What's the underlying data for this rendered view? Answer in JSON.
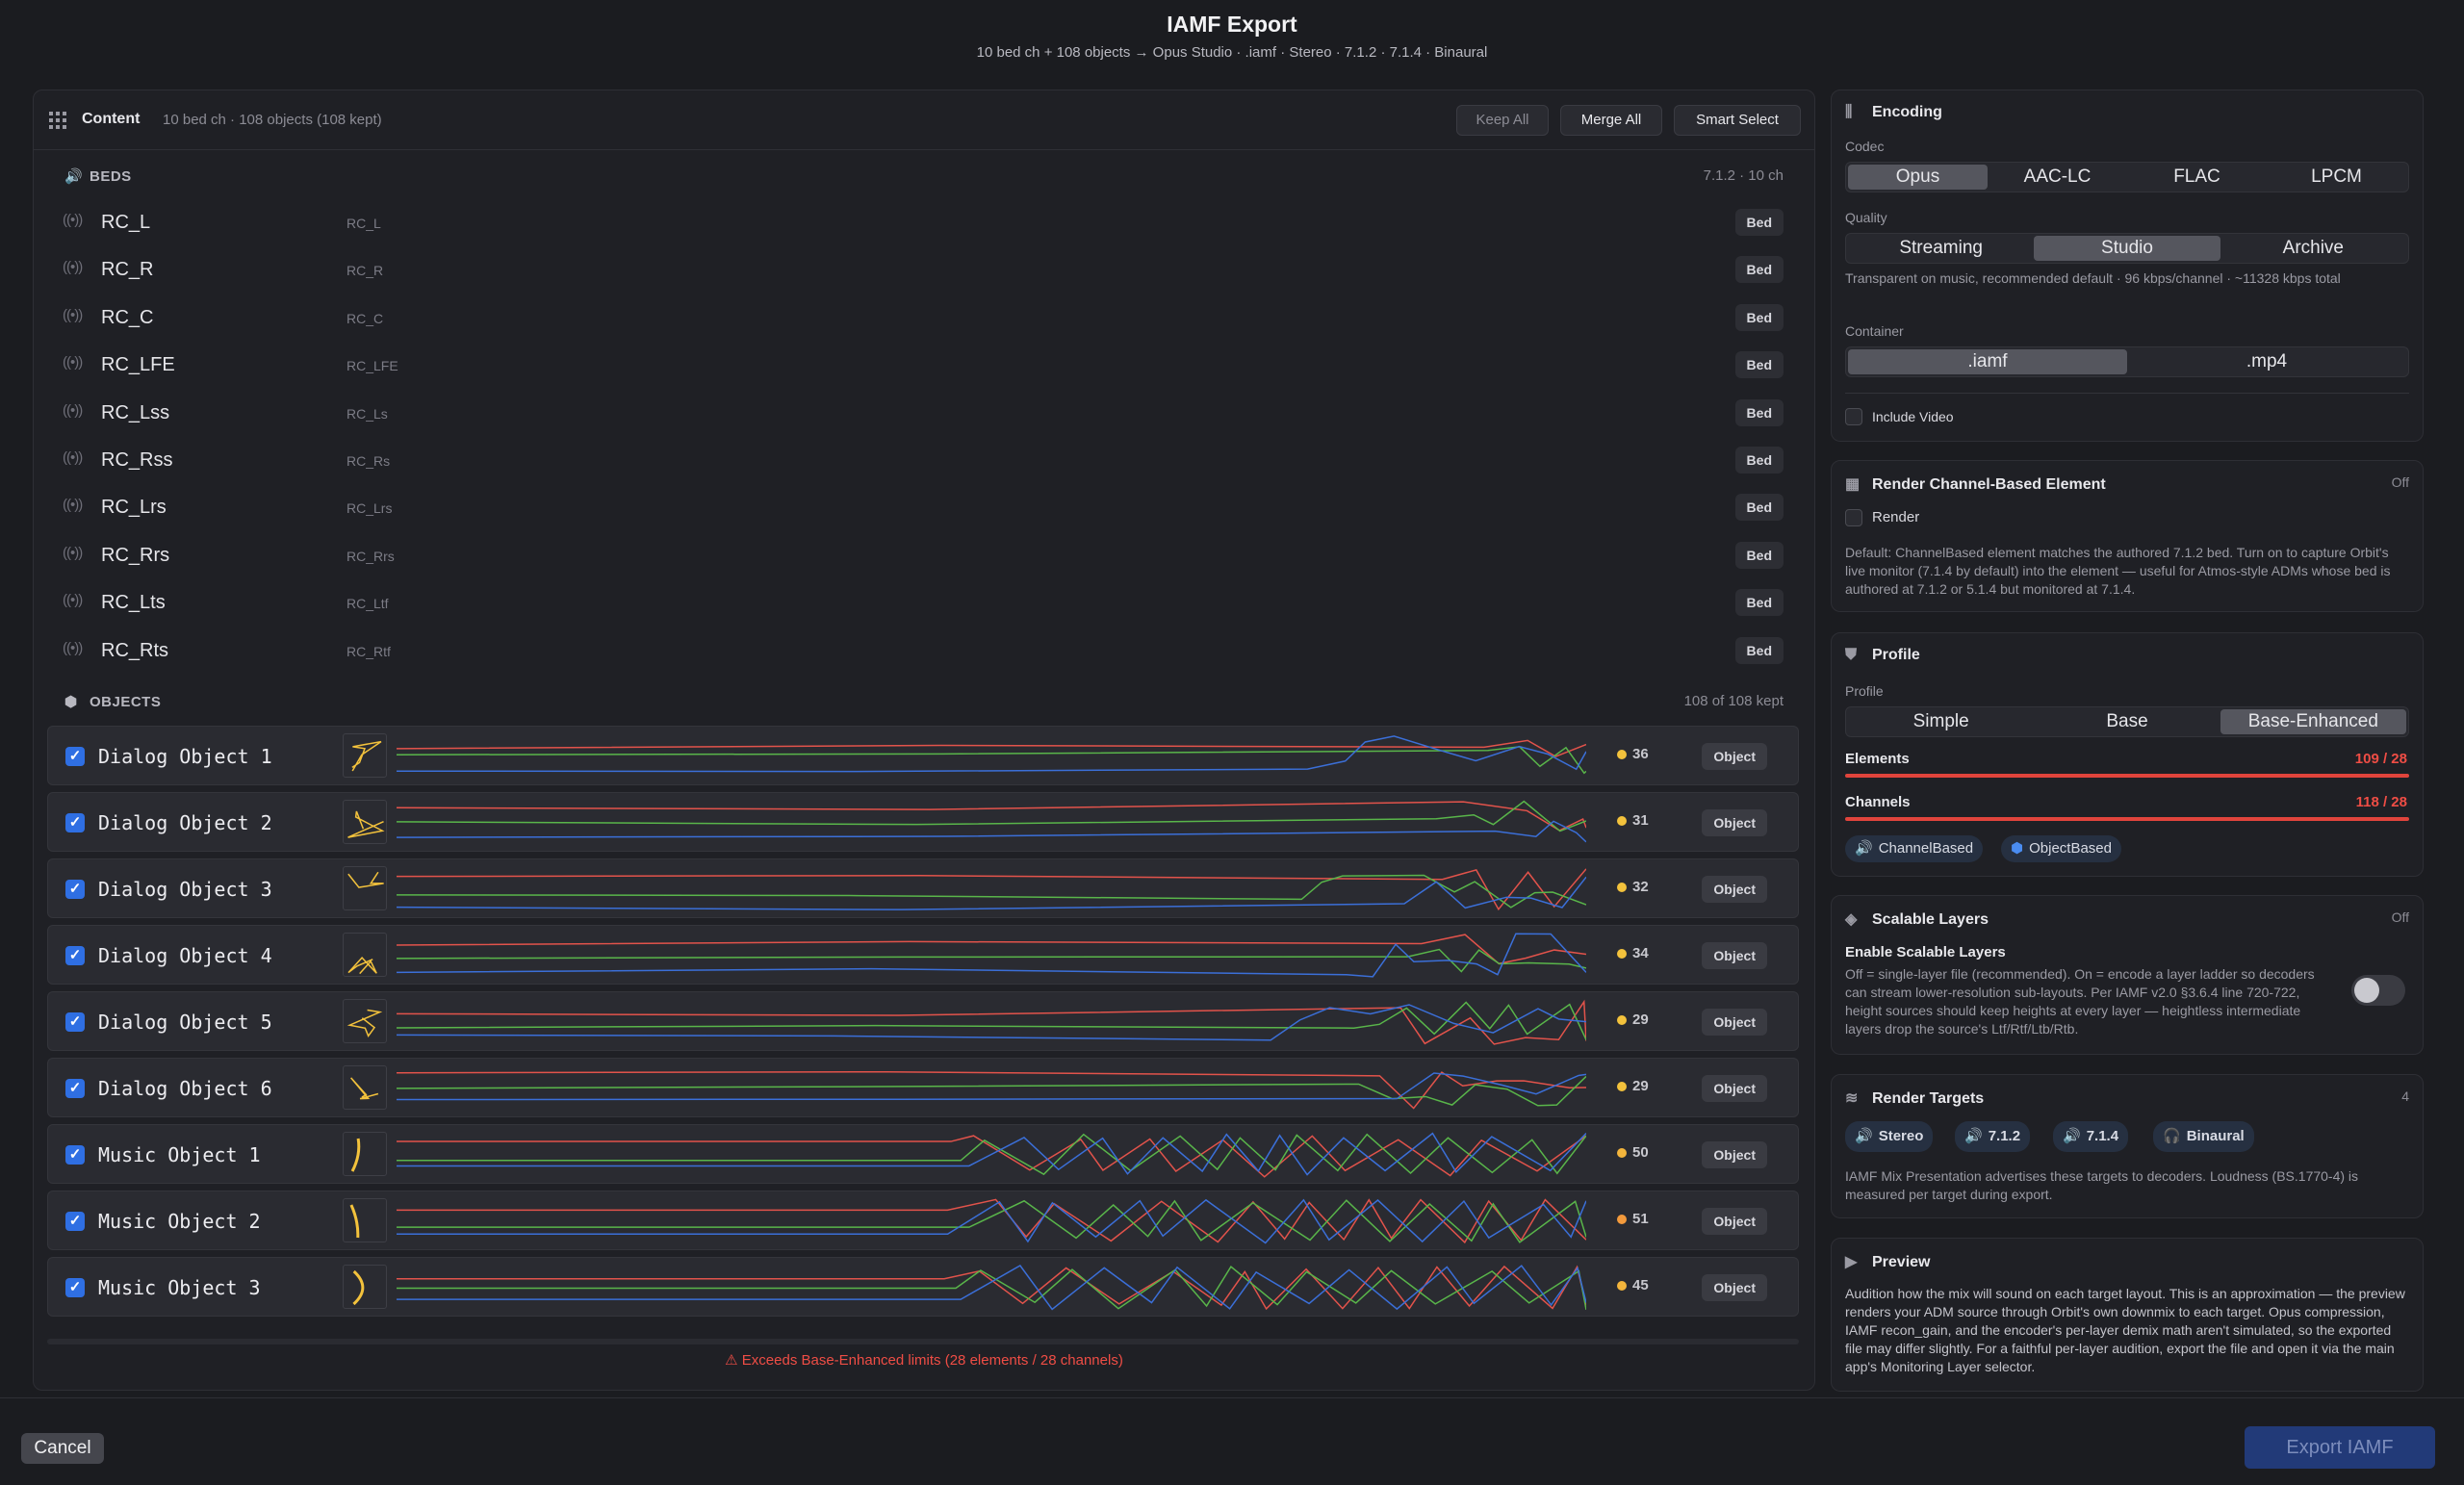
{
  "header": {
    "title": "IAMF Export",
    "subtitle": "10 bed ch + 108 objects → Opus Studio · .iamf · Stereo · 7.1.2 · 7.1.4 · Binaural"
  },
  "content": {
    "title": "Content",
    "summary": "10 bed ch · 108 objects (108 kept)",
    "buttons": {
      "keep_all": "Keep All",
      "merge_all": "Merge All",
      "smart_select": "Smart Select"
    },
    "beds_label": "BEDS",
    "beds_info": "7.1.2 · 10 ch",
    "beds": [
      {
        "name": "RC_L",
        "sub": "RC_L",
        "badge": "Bed"
      },
      {
        "name": "RC_R",
        "sub": "RC_R",
        "badge": "Bed"
      },
      {
        "name": "RC_C",
        "sub": "RC_C",
        "badge": "Bed"
      },
      {
        "name": "RC_LFE",
        "sub": "RC_LFE",
        "badge": "Bed"
      },
      {
        "name": "RC_Lss",
        "sub": "RC_Ls",
        "badge": "Bed"
      },
      {
        "name": "RC_Rss",
        "sub": "RC_Rs",
        "badge": "Bed"
      },
      {
        "name": "RC_Lrs",
        "sub": "RC_Lrs",
        "badge": "Bed"
      },
      {
        "name": "RC_Rrs",
        "sub": "RC_Rrs",
        "badge": "Bed"
      },
      {
        "name": "RC_Lts",
        "sub": "RC_Ltf",
        "badge": "Bed"
      },
      {
        "name": "RC_Rts",
        "sub": "RC_Rtf",
        "badge": "Bed"
      }
    ],
    "objects_label": "OBJECTS",
    "objects_info": "108 of 108 kept",
    "objects": [
      {
        "name": "Dialog Object 1",
        "points": "36",
        "badge": "Object",
        "dot": "#f3c23c"
      },
      {
        "name": "Dialog Object 2",
        "points": "31",
        "badge": "Object",
        "dot": "#f3c23c"
      },
      {
        "name": "Dialog Object 3",
        "points": "32",
        "badge": "Object",
        "dot": "#f3c23c"
      },
      {
        "name": "Dialog Object 4",
        "points": "34",
        "badge": "Object",
        "dot": "#f3c23c"
      },
      {
        "name": "Dialog Object 5",
        "points": "29",
        "badge": "Object",
        "dot": "#f3c23c"
      },
      {
        "name": "Dialog Object 6",
        "points": "29",
        "badge": "Object",
        "dot": "#f3c23c"
      },
      {
        "name": "Music Object 1",
        "points": "50",
        "badge": "Object",
        "dot": "#f3b53c"
      },
      {
        "name": "Music Object 2",
        "points": "51",
        "badge": "Object",
        "dot": "#f39a3c"
      },
      {
        "name": "Music Object 3",
        "points": "45",
        "badge": "Object",
        "dot": "#f3b53c"
      }
    ],
    "warning": "Exceeds Base-Enhanced limits (28 elements / 28 channels)"
  },
  "encoding": {
    "title": "Encoding",
    "codec_label": "Codec",
    "codecs": [
      "Opus",
      "AAC-LC",
      "FLAC",
      "LPCM"
    ],
    "quality_label": "Quality",
    "qualities": [
      "Streaming",
      "Studio",
      "Archive"
    ],
    "quality_desc": "Transparent on music, recommended default · 96 kbps/channel · ~11328 kbps total",
    "container_label": "Container",
    "containers": [
      ".iamf",
      ".mp4"
    ],
    "include_video": "Include Video"
  },
  "render_cbe": {
    "title": "Render Channel-Based Element",
    "status": "Off",
    "checkbox": "Render",
    "desc": "Default: ChannelBased element matches the authored 7.1.2 bed. Turn on to capture Orbit's live monitor (7.1.4 by default) into the element — useful for Atmos-style ADMs whose bed is authored at 7.1.2 or 5.1.4 but monitored at 7.1.4."
  },
  "profile": {
    "title": "Profile",
    "label": "Profile",
    "options": [
      "Simple",
      "Base",
      "Base-Enhanced"
    ],
    "elements_label": "Elements",
    "elements_value": "109 / 28",
    "elements_ratio": 1.0,
    "channels_label": "Channels",
    "channels_value": "118 / 28",
    "channels_ratio": 1.0,
    "chips": [
      "ChannelBased",
      "ObjectBased"
    ]
  },
  "scalable": {
    "title": "Scalable Layers",
    "status": "Off",
    "enable_label": "Enable Scalable Layers",
    "desc": "Off = single-layer file (recommended). On = encode a layer ladder so decoders can stream lower-resolution sub-layouts. Per IAMF v2.0 §3.6.4 line 720-722, height sources should keep heights at every layer — heightless intermediate layers drop the source's Ltf/Rtf/Ltb/Rtb."
  },
  "render_targets": {
    "title": "Render Targets",
    "count": "4",
    "targets": [
      "Stereo",
      "7.1.2",
      "7.1.4",
      "Binaural"
    ],
    "desc": "IAMF Mix Presentation advertises these targets to decoders. Loudness (BS.1770-4) is measured per target during export."
  },
  "preview": {
    "title": "Preview",
    "desc": "Audition how the mix will sound on each target layout. This is an approximation — the preview renders your ADM source through Orbit's own downmix to each target. Opus compression, IAMF recon_gain, and the encoder's per-layer demix math aren't simulated, so the exported file may differ slightly. For a faithful per-layer audition, export the file and open it via the main app's Monitoring Layer selector."
  },
  "footer": {
    "cancel": "Cancel",
    "export": "Export IAMF"
  },
  "colors": {
    "accent": "#2f6fe3",
    "error": "#ef4d45",
    "curve_x": "#e2534b",
    "curve_y": "#59b54a",
    "curve_z": "#3b6fd8",
    "thumb": "#f3c23c"
  }
}
